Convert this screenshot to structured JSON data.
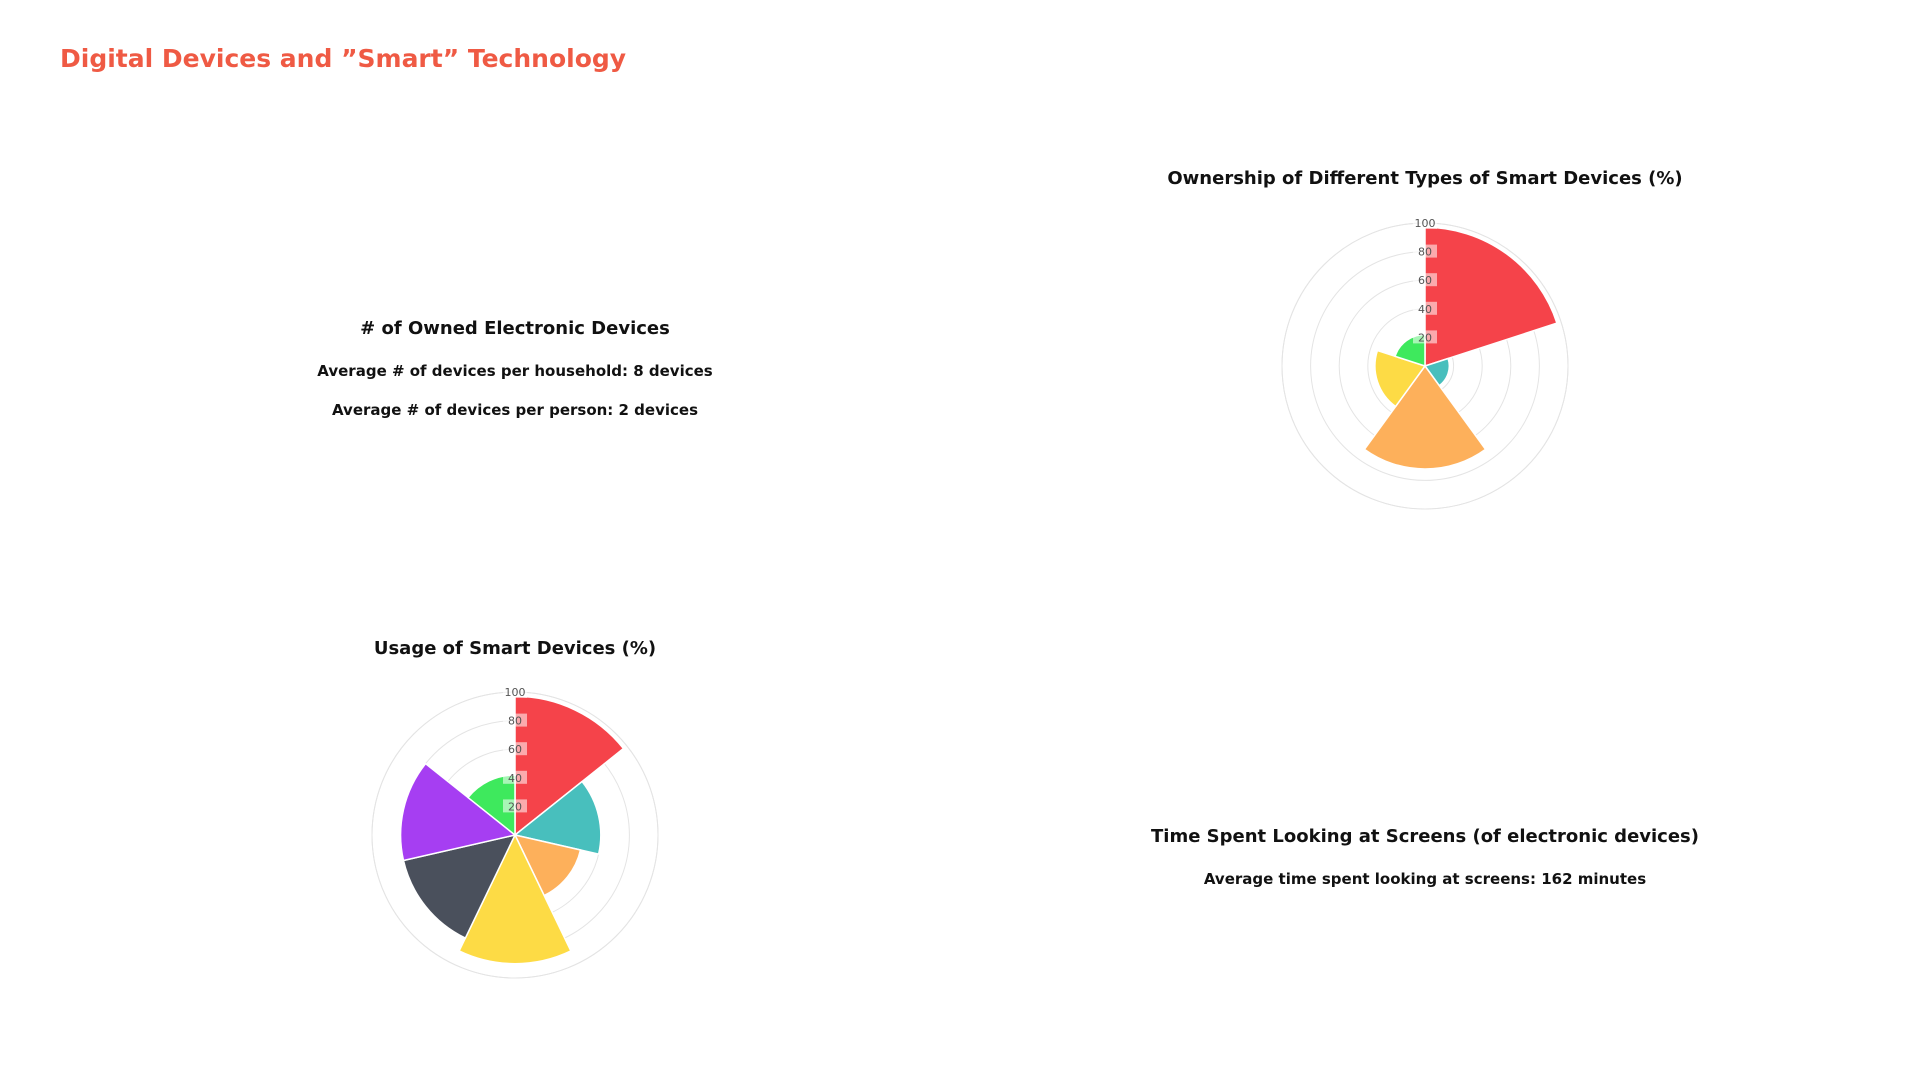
{
  "page": {
    "title": "Digital Devices and ”Smart” Technology"
  },
  "devices_panel": {
    "title": "# of Owned Electronic Devices",
    "line1": "Average # of devices per household: 8 devices",
    "line2": "Average # of devices per person: 2 devices"
  },
  "screens_panel": {
    "title": "Time Spent Looking at Screens (of electronic devices)",
    "line1": "Average time spent looking at screens: 162 minutes"
  },
  "chart_data": [
    {
      "id": "ownership",
      "type": "polar-bar",
      "title": "Ownership of Different Types of Smart Devices (%)",
      "rlim": [
        0,
        100
      ],
      "radial_ticks": [
        "20",
        "40",
        "60",
        "80",
        "100"
      ],
      "grid": true,
      "values": [
        97,
        17,
        72,
        35,
        22
      ],
      "colors": [
        "#f5434a",
        "#48bfbd",
        "#fdb05b",
        "#fddb45",
        "#3ee95d"
      ]
    },
    {
      "id": "usage",
      "type": "polar-bar",
      "title": "Usage of Smart Devices (%)",
      "rlim": [
        0,
        100
      ],
      "radial_ticks": [
        "20",
        "40",
        "60",
        "80",
        "100"
      ],
      "grid": true,
      "values": [
        97,
        60,
        47,
        90,
        80,
        80,
        42
      ],
      "colors": [
        "#f5434a",
        "#48bfbd",
        "#fdb05b",
        "#fddb45",
        "#4a505c",
        "#a63ef2",
        "#3ee95d"
      ]
    }
  ]
}
